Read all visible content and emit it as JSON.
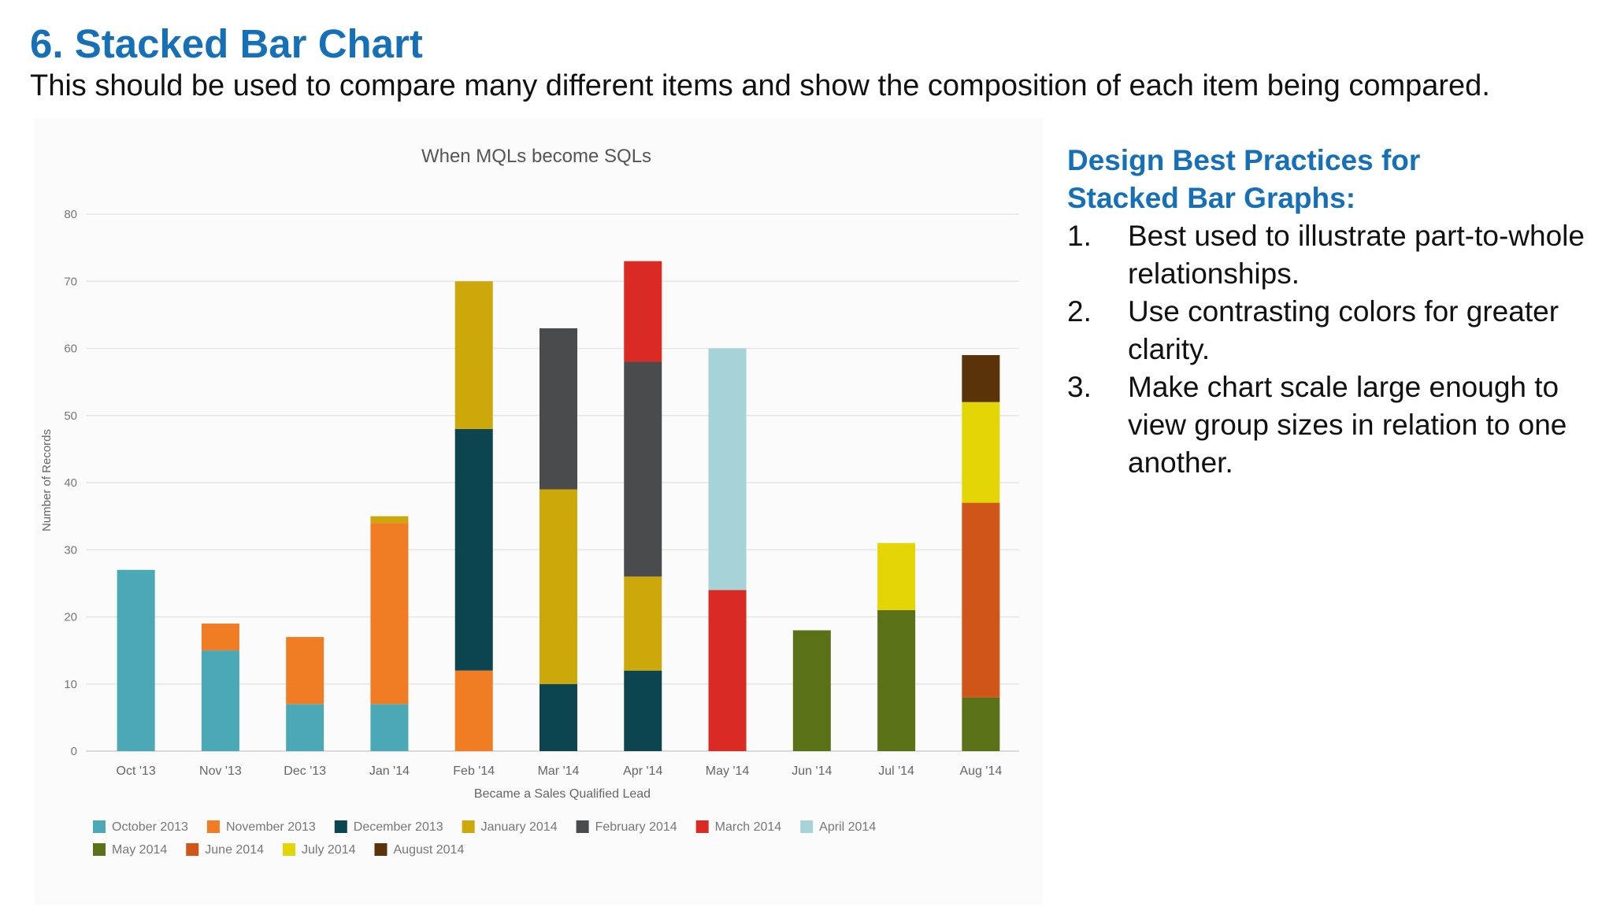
{
  "slide": {
    "title": "6. Stacked Bar Chart",
    "subtitle": "This should be used to compare many different items and show the composition of each item being compared."
  },
  "practices": {
    "heading_line1": "Design Best Practices for",
    "heading_line2": "Stacked Bar Graphs:",
    "items": [
      {
        "number": "1.",
        "text": "Best used to illustrate part-to-whole relationships."
      },
      {
        "number": "2.",
        "text": "Use contrasting colors for greater clarity."
      },
      {
        "number": "3.",
        "text": "Make chart scale large enough to view group sizes in relation to one another."
      }
    ]
  },
  "chart_data": {
    "type": "bar",
    "stacked": true,
    "title": "When MQLs become SQLs",
    "xlabel": "Became a Sales Qualified Lead",
    "ylabel": "Number of Records",
    "ylim": [
      0,
      80
    ],
    "yticks": [
      0,
      10,
      20,
      30,
      40,
      50,
      60,
      70,
      80
    ],
    "grid": true,
    "legend_position": "bottom",
    "categories": [
      "Oct '13",
      "Nov '13",
      "Dec '13",
      "Jan '14",
      "Feb '14",
      "Mar '14",
      "Apr '14",
      "May '14",
      "Jun '14",
      "Jul '14",
      "Aug '14"
    ],
    "series": [
      {
        "name": "October 2013",
        "color": "#4ba8b5",
        "values": [
          27,
          15,
          7,
          7,
          0,
          0,
          0,
          0,
          0,
          0,
          0
        ]
      },
      {
        "name": "November 2013",
        "color": "#f07d23",
        "values": [
          0,
          4,
          10,
          27,
          12,
          0,
          0,
          0,
          0,
          0,
          0
        ]
      },
      {
        "name": "December 2013",
        "color": "#0c4450",
        "values": [
          0,
          0,
          0,
          0,
          36,
          10,
          12,
          0,
          0,
          0,
          0
        ]
      },
      {
        "name": "January 2014",
        "color": "#cca80b",
        "values": [
          0,
          0,
          0,
          1,
          22,
          29,
          14,
          0,
          0,
          0,
          0
        ]
      },
      {
        "name": "February 2014",
        "color": "#4a4b4d",
        "values": [
          0,
          0,
          0,
          0,
          0,
          24,
          32,
          0,
          0,
          0,
          0
        ]
      },
      {
        "name": "March 2014",
        "color": "#d92a24",
        "values": [
          0,
          0,
          0,
          0,
          0,
          0,
          15,
          24,
          0,
          0,
          0
        ]
      },
      {
        "name": "April 2014",
        "color": "#a5d3d7",
        "values": [
          0,
          0,
          0,
          0,
          0,
          0,
          0,
          36,
          0,
          0,
          0
        ]
      },
      {
        "name": "May 2014",
        "color": "#5a7118",
        "values": [
          0,
          0,
          0,
          0,
          0,
          0,
          0,
          0,
          18,
          21,
          8
        ]
      },
      {
        "name": "June 2014",
        "color": "#cf5518",
        "values": [
          0,
          0,
          0,
          0,
          0,
          0,
          0,
          0,
          0,
          0,
          29
        ]
      },
      {
        "name": "July 2014",
        "color": "#e3d506",
        "values": [
          0,
          0,
          0,
          0,
          0,
          0,
          0,
          0,
          0,
          10,
          15
        ]
      },
      {
        "name": "August 2014",
        "color": "#5a3408",
        "values": [
          0,
          0,
          0,
          0,
          0,
          0,
          0,
          0,
          0,
          0,
          7
        ]
      }
    ]
  }
}
